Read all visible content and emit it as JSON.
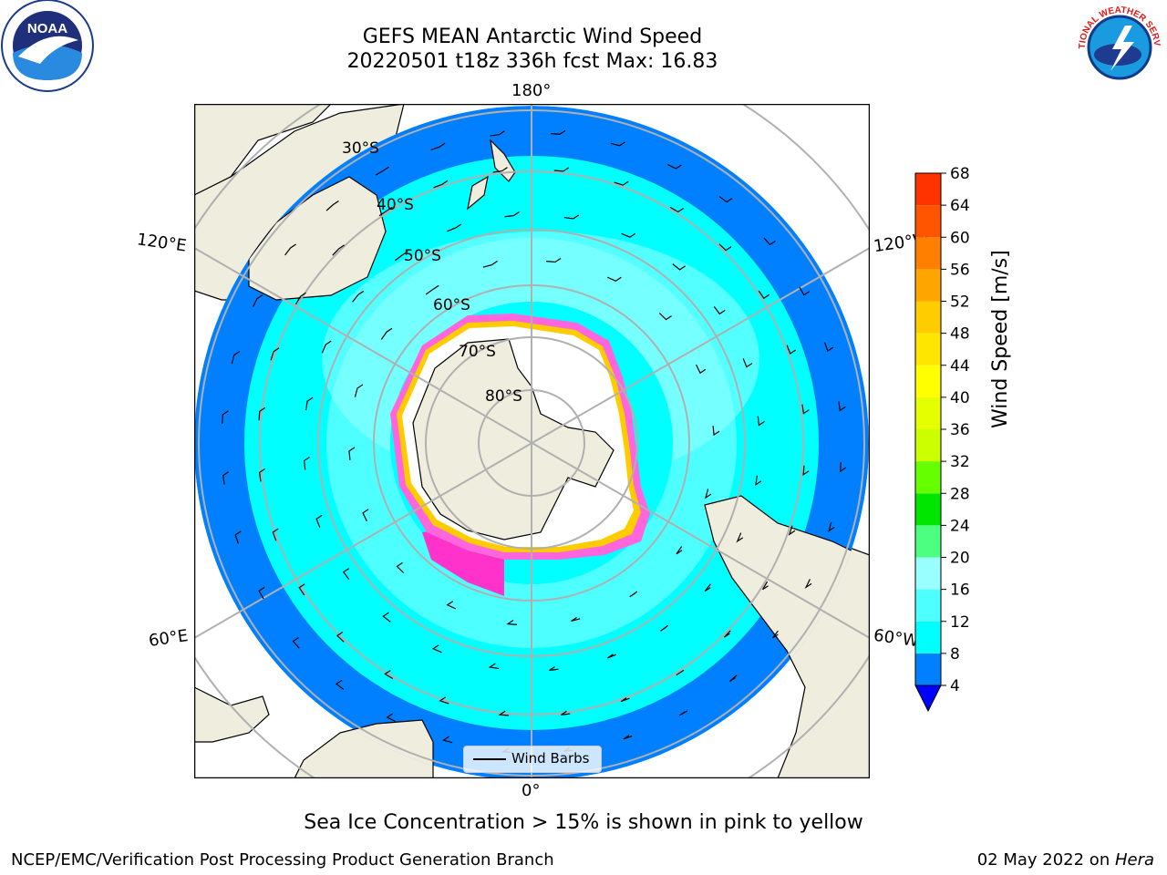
{
  "title": {
    "line1": "GEFS MEAN Antarctic Wind Speed",
    "line2": "20220501 t18z 336h fcst   Max: 16.83"
  },
  "logos": {
    "left": "noaa-logo",
    "left_text": "NOAA",
    "right": "nws-logo",
    "right_text": "NATIONAL WEATHER SERVICE"
  },
  "map": {
    "projection": "south-polar-stereographic",
    "longitude_labels": {
      "top": "180°",
      "bottom": "0°",
      "upper_left": "120°E",
      "upper_right": "120°W",
      "lower_left": "60°E",
      "lower_right": "60°W"
    },
    "latitude_labels": [
      "30°S",
      "40°S",
      "50°S",
      "60°S",
      "70°S",
      "80°S"
    ],
    "colors": {
      "land": "#efedde",
      "ice": "#ffffff",
      "ocean_outer": "#0080ff",
      "wind_8_12": "#00ffff",
      "wind_12_16": "#4dffff",
      "wind_16_20": "#99ffff",
      "sea_ice_edge_low": "#ff33cc",
      "sea_ice_edge_high": "#ffcc00"
    },
    "legend": {
      "label": "Wind Barbs"
    }
  },
  "colorbar": {
    "label": "Wind Speed [m/s]",
    "ticks": [
      "4",
      "8",
      "12",
      "16",
      "20",
      "24",
      "28",
      "32",
      "36",
      "40",
      "44",
      "48",
      "52",
      "56",
      "60",
      "64",
      "68"
    ],
    "colors": [
      "#0080ff",
      "#00ffff",
      "#4dffff",
      "#99ffff",
      "#4dff80",
      "#00e600",
      "#66ff00",
      "#ccff00",
      "#e6ff00",
      "#ffff00",
      "#ffe600",
      "#ffcc00",
      "#ffa500",
      "#ff8000",
      "#ff5500",
      "#ff3300",
      "#ff0000"
    ],
    "extend_color": "#0000ff"
  },
  "caption": "Sea Ice Concentration > 15% is shown in pink to yellow",
  "footer": {
    "left": "NCEP/EMC/Verification Post Processing Product Generation Branch",
    "date": "02 May 2022 on ",
    "machine": "Hera"
  }
}
